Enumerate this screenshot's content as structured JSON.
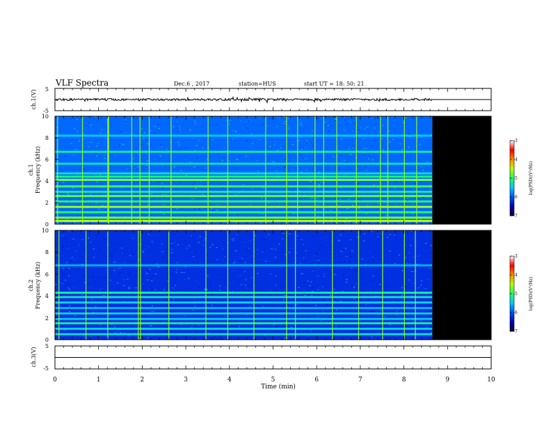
{
  "header": {
    "title": "VLF Spectra",
    "date": "Dec.6 , 2017",
    "station": "station=HUS",
    "start": "start UT = 18: 50: 21"
  },
  "colors": {
    "background": "#ffffff",
    "no_data": "#000000",
    "trace": "#000000",
    "colormap": [
      "#0b0040",
      "#0000b4",
      "#0050ff",
      "#00c8ff",
      "#20ff60",
      "#b4ff00",
      "#ff8c00",
      "#ff0000",
      "#ffffff"
    ]
  },
  "chart_data": [
    {
      "name": "ch1-waveform",
      "type": "line",
      "ylabel": "ch.1(V)",
      "ylim": [
        -5,
        5
      ],
      "yticks": [
        "5",
        "-5"
      ],
      "x_range": [
        0,
        10
      ],
      "data_end_min": 8.65,
      "trace_level_v": 0
    },
    {
      "name": "ch1-spectrogram",
      "type": "heatmap",
      "ylabel_line1": "ch.1",
      "ylabel_line2": "Frequency (kHz)",
      "ylim": [
        0,
        10
      ],
      "yticks": [
        "0",
        "2",
        "4",
        "6",
        "8",
        "10"
      ],
      "x_range": [
        0,
        10
      ],
      "data_end_min": 8.65,
      "background_level": -5.9,
      "bands_khz": [
        {
          "f": 0.3,
          "level": -4.5
        },
        {
          "f": 0.6,
          "level": -4.7
        },
        {
          "f": 1.1,
          "level": -5.0
        },
        {
          "f": 1.6,
          "level": -4.6
        },
        {
          "f": 2.1,
          "level": -5.0
        },
        {
          "f": 2.6,
          "level": -4.8
        },
        {
          "f": 3.0,
          "level": -5.2
        },
        {
          "f": 3.5,
          "level": -4.9
        },
        {
          "f": 4.1,
          "level": -4.7
        },
        {
          "f": 4.4,
          "level": -5.1
        },
        {
          "f": 4.7,
          "level": -5.3
        },
        {
          "f": 5.6,
          "level": -5.3
        },
        {
          "f": 6.7,
          "level": -5.2
        },
        {
          "f": 8.2,
          "level": -5.5
        }
      ],
      "impulses_min": [
        0.05,
        0.62,
        1.2,
        1.22,
        1.75,
        1.94,
        2.15,
        2.65,
        3.5,
        3.95,
        4.82,
        5.3,
        5.55,
        5.95,
        6.15,
        6.45,
        6.9,
        7.45,
        7.62,
        8.0,
        8.28
      ]
    },
    {
      "name": "ch2-spectrogram",
      "type": "heatmap",
      "ylabel_line1": "ch.2",
      "ylabel_line2": "Frequency (kHz)",
      "ylim": [
        0,
        10
      ],
      "yticks": [
        "0",
        "2",
        "4",
        "6",
        "8",
        "10"
      ],
      "x_range": [
        0,
        10
      ],
      "data_end_min": 8.65,
      "background_level": -6.2,
      "bands_khz": [
        {
          "f": 0.5,
          "level": -5.3
        },
        {
          "f": 1.0,
          "level": -5.4
        },
        {
          "f": 1.5,
          "level": -5.2
        },
        {
          "f": 1.9,
          "level": -5.5
        },
        {
          "f": 2.4,
          "level": -5.4
        },
        {
          "f": 2.9,
          "level": -5.6
        },
        {
          "f": 3.4,
          "level": -5.4
        },
        {
          "f": 3.9,
          "level": -5.3
        },
        {
          "f": 4.3,
          "level": -5.2
        },
        {
          "f": 6.8,
          "level": -5.6
        }
      ],
      "impulses_min": [
        0.08,
        0.7,
        1.2,
        1.9,
        1.95,
        2.6,
        3.45,
        3.95,
        4.55,
        5.3,
        5.5,
        6.35,
        6.95,
        7.5,
        8.0,
        8.25
      ]
    },
    {
      "name": "ch3-waveform",
      "type": "line",
      "ylabel": "ch.3(V)",
      "ylim": [
        -5,
        5
      ],
      "yticks": [
        "5",
        "-5"
      ],
      "x_range": [
        0,
        10
      ],
      "trace_level_v": 0
    }
  ],
  "x_axis": {
    "label": "Time (min)",
    "ticks": [
      "0",
      "1",
      "2",
      "3",
      "4",
      "5",
      "6",
      "7",
      "8",
      "9",
      "10"
    ]
  },
  "colorbars": [
    {
      "label": "log(PSD)(V²/Hz)",
      "range": [
        -7,
        -3
      ],
      "ticks": [
        "-3",
        "-4",
        "-5",
        "-6",
        "-7"
      ]
    },
    {
      "label": "log(PSD)(V²/Hz)",
      "range": [
        -7,
        -3
      ],
      "ticks": [
        "-3",
        "-4",
        "-5",
        "-6",
        "-7"
      ]
    }
  ]
}
